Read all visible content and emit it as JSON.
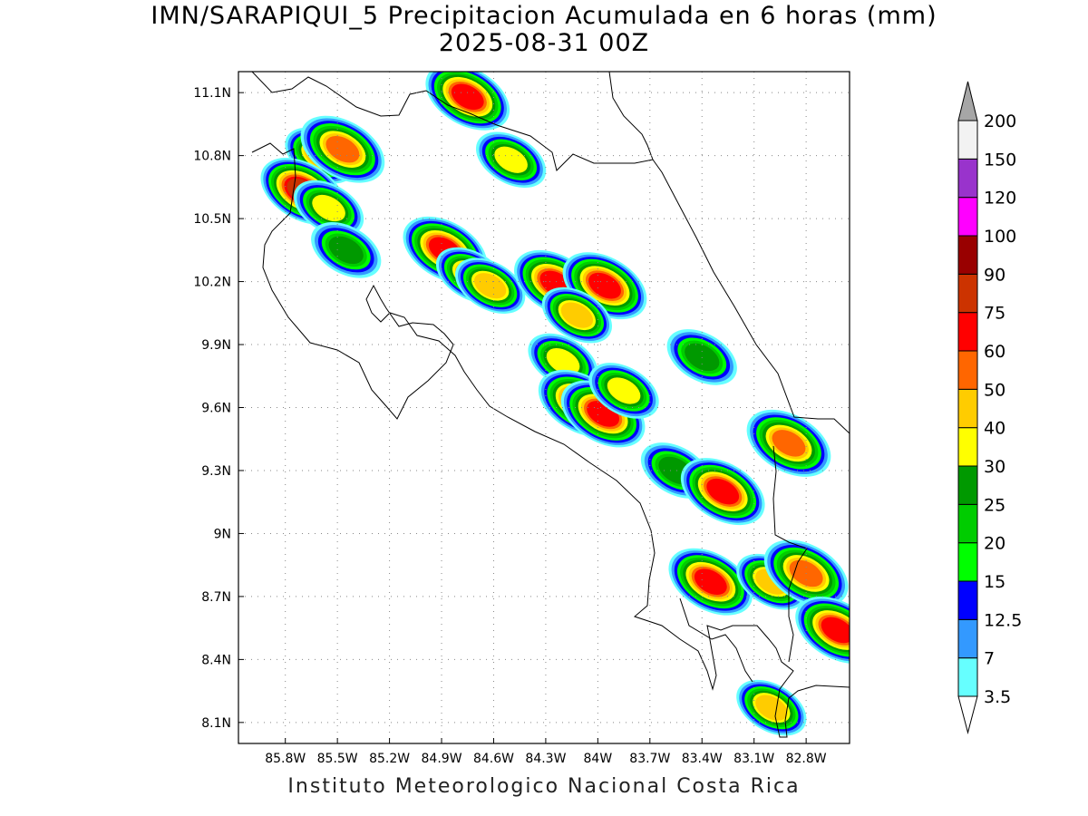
{
  "title_line1": "IMN/SARAPIQUI_5 Precipitacion Acumulada en 6 horas (mm)",
  "title_line2": "2025-08-31 00Z",
  "credit": "Instituto Meteorologico Nacional Costa Rica",
  "map": {
    "lon_range": [
      -86.07,
      -82.55
    ],
    "lat_range": [
      8.0,
      11.2
    ],
    "lon_ticks": [
      {
        "value": -85.8,
        "label": "85.8W"
      },
      {
        "value": -85.5,
        "label": "85.5W"
      },
      {
        "value": -85.2,
        "label": "85.2W"
      },
      {
        "value": -84.9,
        "label": "84.9W"
      },
      {
        "value": -84.6,
        "label": "84.6W"
      },
      {
        "value": -84.3,
        "label": "84.3W"
      },
      {
        "value": -84.0,
        "label": "84W"
      },
      {
        "value": -83.7,
        "label": "83.7W"
      },
      {
        "value": -83.4,
        "label": "83.4W"
      },
      {
        "value": -83.1,
        "label": "83.1W"
      },
      {
        "value": -82.8,
        "label": "82.8W"
      }
    ],
    "lat_ticks": [
      {
        "value": 11.1,
        "label": "11.1N"
      },
      {
        "value": 10.8,
        "label": "10.8N"
      },
      {
        "value": 10.5,
        "label": "10.5N"
      },
      {
        "value": 10.2,
        "label": "10.2N"
      },
      {
        "value": 9.9,
        "label": "9.9N"
      },
      {
        "value": 9.6,
        "label": "9.6N"
      },
      {
        "value": 9.3,
        "label": "9.3N"
      },
      {
        "value": 9.0,
        "label": "9N"
      },
      {
        "value": 8.7,
        "label": "8.7N"
      },
      {
        "value": 8.4,
        "label": "8.4N"
      },
      {
        "value": 8.1,
        "label": "8.1N"
      }
    ],
    "grid": "dotted"
  },
  "colorbar": {
    "levels": [
      "3.5",
      "7",
      "12.5",
      "15",
      "20",
      "25",
      "30",
      "40",
      "50",
      "60",
      "75",
      "90",
      "100",
      "120",
      "150",
      "200"
    ],
    "colors": [
      "#66ffff",
      "#3399ff",
      "#0000ff",
      "#00ff00",
      "#00cc00",
      "#009900",
      "#ffff00",
      "#ffcc00",
      "#ff6600",
      "#ff0000",
      "#cc3300",
      "#990000",
      "#ff00ff",
      "#9933cc",
      "#f2f2f2",
      "#a6a6a6"
    ],
    "extend": "both"
  },
  "precip_cells": [
    {
      "lon": -85.6,
      "lat": 10.8,
      "peak": 40
    },
    {
      "lon": -85.47,
      "lat": 10.83,
      "peak": 50
    },
    {
      "lon": -85.7,
      "lat": 10.63,
      "peak": 75
    },
    {
      "lon": -85.55,
      "lat": 10.55,
      "peak": 30
    },
    {
      "lon": -85.45,
      "lat": 10.35,
      "peak": 25
    },
    {
      "lon": -84.75,
      "lat": 11.08,
      "peak": 60
    },
    {
      "lon": -84.5,
      "lat": 10.78,
      "peak": 30
    },
    {
      "lon": -84.88,
      "lat": 10.35,
      "peak": 60
    },
    {
      "lon": -84.73,
      "lat": 10.23,
      "peak": 40
    },
    {
      "lon": -84.62,
      "lat": 10.18,
      "peak": 40
    },
    {
      "lon": -84.24,
      "lat": 10.19,
      "peak": 60
    },
    {
      "lon": -83.96,
      "lat": 10.18,
      "peak": 60
    },
    {
      "lon": -84.12,
      "lat": 10.04,
      "peak": 40
    },
    {
      "lon": -84.2,
      "lat": 9.82,
      "peak": 30
    },
    {
      "lon": -84.1,
      "lat": 9.62,
      "peak": 60
    },
    {
      "lon": -83.97,
      "lat": 9.57,
      "peak": 60
    },
    {
      "lon": -83.85,
      "lat": 9.68,
      "peak": 30
    },
    {
      "lon": -83.55,
      "lat": 9.3,
      "peak": 25
    },
    {
      "lon": -83.28,
      "lat": 9.2,
      "peak": 60
    },
    {
      "lon": -83.35,
      "lat": 8.77,
      "peak": 60
    },
    {
      "lon": -83.0,
      "lat": 8.77,
      "peak": 40
    },
    {
      "lon": -82.8,
      "lat": 8.81,
      "peak": 50
    },
    {
      "lon": -82.62,
      "lat": 8.54,
      "peak": 60
    },
    {
      "lon": -82.9,
      "lat": 9.43,
      "peak": 50
    },
    {
      "lon": -83.4,
      "lat": 9.84,
      "peak": 25
    },
    {
      "lon": -83.0,
      "lat": 8.17,
      "peak": 40
    }
  ]
}
